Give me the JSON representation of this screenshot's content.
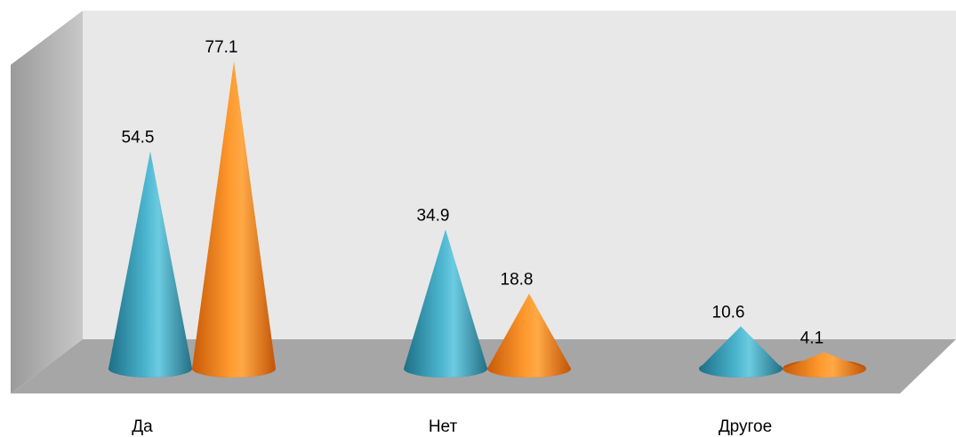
{
  "chart_data": {
    "type": "bar",
    "style": "3d-cone",
    "categories": [
      "Да",
      "Нет",
      "Другое"
    ],
    "series": [
      {
        "values": [
          54.5,
          34.9,
          10.6
        ],
        "color": "#3a9bb4"
      },
      {
        "values": [
          77.1,
          18.8,
          4.1
        ],
        "color": "#f58220"
      }
    ],
    "data_labels": [
      [
        "54.5",
        "34.9",
        "10.6"
      ],
      [
        "77.1",
        "18.8",
        "4.1"
      ]
    ],
    "ylim": [
      0,
      80
    ],
    "grid": false,
    "legend": "none",
    "wall_color": "#e8e8e8",
    "floor_color": "#a6a6a6"
  }
}
